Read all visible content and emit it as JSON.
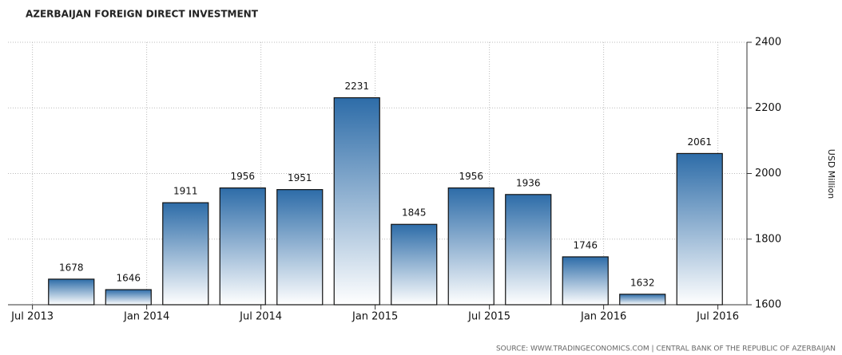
{
  "chart_data": {
    "type": "bar",
    "title": "AZERBAIJAN FOREIGN DIRECT INVESTMENT",
    "y_axis_label": "USD Million",
    "source": "SOURCE: WWW.TRADINGECONOMICS.COM | CENTRAL BANK OF THE REPUBLIC OF AZERBAIJAN",
    "categories": [
      null,
      null,
      null,
      null,
      null,
      null,
      null,
      null,
      null,
      null,
      null,
      null
    ],
    "values": [
      1678,
      1646,
      1911,
      1956,
      1951,
      2231,
      1845,
      1956,
      1936,
      1746,
      1632,
      2061
    ],
    "color": "#2d6ca8",
    "xtick_labels": [
      "Jul 2013",
      "Jan 2014",
      "Jul 2014",
      "Jan 2015",
      "Jul 2015",
      "Jan 2016",
      "Jul 2016"
    ],
    "ylim": [
      1600,
      2400
    ],
    "yticks": [
      1600,
      1800,
      2000,
      2200,
      2400
    ],
    "grid": true
  }
}
